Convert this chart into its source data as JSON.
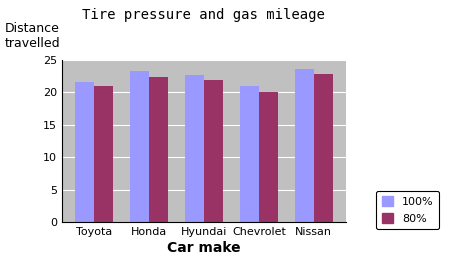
{
  "title": "Tire pressure and gas mileage",
  "ylabel": "Distance\ntravelled",
  "xlabel": "Car make",
  "categories": [
    "Toyota",
    "Honda",
    "Hyundai",
    "Chevrolet",
    "Nissan"
  ],
  "series": {
    "100%": [
      21.5,
      23.2,
      22.7,
      21.0,
      23.5
    ],
    "80%": [
      21.0,
      22.3,
      21.8,
      20.0,
      22.8
    ]
  },
  "colors": {
    "100%": "#9999FF",
    "80%": "#993366"
  },
  "ylim": [
    0,
    25
  ],
  "yticks": [
    0,
    5,
    10,
    15,
    20,
    25
  ],
  "bar_width": 0.35,
  "background_color": "#C0C0C0",
  "outer_background": "#FFFFFF",
  "title_fontsize": 10,
  "axis_label_fontsize": 9,
  "tick_fontsize": 8,
  "legend_fontsize": 8
}
